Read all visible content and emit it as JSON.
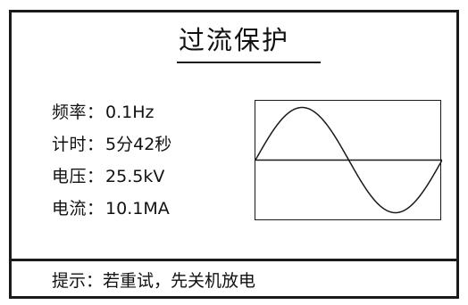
{
  "screen": {
    "title": "过流保护",
    "readouts": [
      {
        "label": "频率",
        "sep": "：",
        "value": "0.1Hz"
      },
      {
        "label": "计时",
        "sep": "：",
        "value": "5分42秒"
      },
      {
        "label": "电压",
        "sep": "：",
        "value": "25.5kV"
      },
      {
        "label": "电流",
        "sep": "：",
        "value": "10.1MA"
      }
    ],
    "waveform": {
      "shape": "sine",
      "cycles": 1,
      "icon": "sine-wave-icon"
    },
    "footer": {
      "label": "提示",
      "sep": "：",
      "message": "若重试，先关机放电"
    }
  }
}
